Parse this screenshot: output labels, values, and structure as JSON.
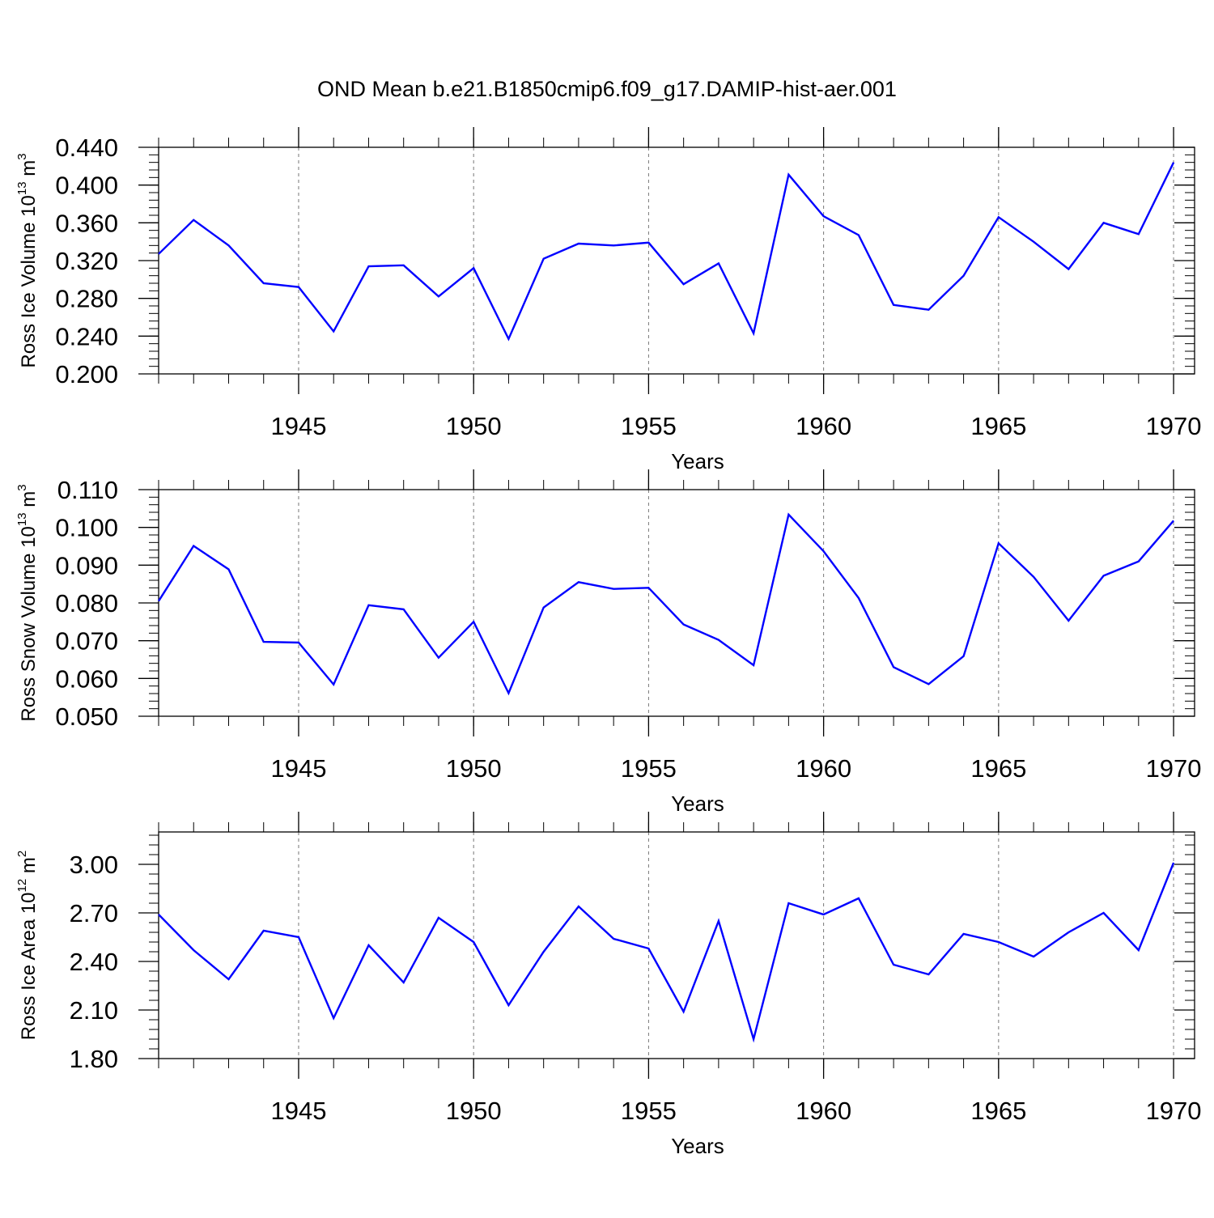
{
  "chart_data": [
    {
      "type": "line",
      "title": "OND Mean b.e21.B1850cmip6.f09_g17.DAMIP-hist-aer.001",
      "xlabel": "Years",
      "ylabel": {
        "text": "Ross Ice Volume 10",
        "exp": "13",
        "unit": " m",
        "unit_exp": "3"
      },
      "x": [
        1941,
        1942,
        1943,
        1944,
        1945,
        1946,
        1947,
        1948,
        1949,
        1950,
        1951,
        1952,
        1953,
        1954,
        1955,
        1956,
        1957,
        1958,
        1959,
        1960,
        1961,
        1962,
        1963,
        1964,
        1965,
        1966,
        1967,
        1968,
        1969,
        1970
      ],
      "values": [
        0.327,
        0.363,
        0.336,
        0.296,
        0.292,
        0.245,
        0.314,
        0.315,
        0.282,
        0.312,
        0.237,
        0.322,
        0.338,
        0.336,
        0.339,
        0.295,
        0.317,
        0.243,
        0.411,
        0.367,
        0.347,
        0.273,
        0.268,
        0.304,
        0.366,
        0.34,
        0.311,
        0.36,
        0.348,
        0.424
      ],
      "xlim": [
        1941,
        1970.6
      ],
      "ylim": [
        0.2,
        0.44
      ],
      "xticks": [
        1945,
        1950,
        1955,
        1960,
        1965,
        1970
      ],
      "yticks": [
        "0.200",
        "0.240",
        "0.280",
        "0.320",
        "0.360",
        "0.400",
        "0.440"
      ],
      "ytick_values": [
        0.2,
        0.24,
        0.28,
        0.32,
        0.36,
        0.4,
        0.44
      ],
      "grid": "dashed vertical at major x ticks",
      "line_color": "#0000ff"
    },
    {
      "type": "line",
      "title": "",
      "xlabel": "Years",
      "ylabel": {
        "text": "Ross Snow Volume 10",
        "exp": "13",
        "unit": " m",
        "unit_exp": "3"
      },
      "x": [
        1941,
        1942,
        1943,
        1944,
        1945,
        1946,
        1947,
        1948,
        1949,
        1950,
        1951,
        1952,
        1953,
        1954,
        1955,
        1956,
        1957,
        1958,
        1959,
        1960,
        1961,
        1962,
        1963,
        1964,
        1965,
        1966,
        1967,
        1968,
        1969,
        1970
      ],
      "values": [
        0.0805,
        0.0951,
        0.0889,
        0.0697,
        0.0695,
        0.0584,
        0.0794,
        0.0783,
        0.0655,
        0.075,
        0.0561,
        0.0788,
        0.0855,
        0.0837,
        0.084,
        0.0743,
        0.0702,
        0.0635,
        0.1034,
        0.0937,
        0.0813,
        0.063,
        0.0585,
        0.0659,
        0.0958,
        0.0869,
        0.0753,
        0.0872,
        0.091,
        0.1018
      ],
      "xlim": [
        1941,
        1970.6
      ],
      "ylim": [
        0.05,
        0.11
      ],
      "xticks": [
        1945,
        1950,
        1955,
        1960,
        1965,
        1970
      ],
      "yticks": [
        "0.050",
        "0.060",
        "0.070",
        "0.080",
        "0.090",
        "0.100",
        "0.110"
      ],
      "ytick_values": [
        0.05,
        0.06,
        0.07,
        0.08,
        0.09,
        0.1,
        0.11
      ],
      "grid": "dashed vertical at major x ticks",
      "line_color": "#0000ff"
    },
    {
      "type": "line",
      "title": "",
      "xlabel": "Years",
      "ylabel": {
        "text": "Ross Ice Area 10",
        "exp": "12",
        "unit": " m",
        "unit_exp": "2"
      },
      "x": [
        1941,
        1942,
        1943,
        1944,
        1945,
        1946,
        1947,
        1948,
        1949,
        1950,
        1951,
        1952,
        1953,
        1954,
        1955,
        1956,
        1957,
        1958,
        1959,
        1960,
        1961,
        1962,
        1963,
        1964,
        1965,
        1966,
        1967,
        1968,
        1969,
        1970
      ],
      "values": [
        2.69,
        2.47,
        2.29,
        2.59,
        2.55,
        2.05,
        2.5,
        2.27,
        2.67,
        2.52,
        2.13,
        2.46,
        2.74,
        2.54,
        2.48,
        2.09,
        2.65,
        1.92,
        2.76,
        2.69,
        2.79,
        2.38,
        2.32,
        2.57,
        2.52,
        2.43,
        2.58,
        2.7,
        2.47,
        3.01
      ],
      "xlim": [
        1941,
        1970.6
      ],
      "ylim": [
        1.8,
        3.2
      ],
      "xticks": [
        1945,
        1950,
        1955,
        1960,
        1965,
        1970
      ],
      "yticks": [
        "1.80",
        "2.10",
        "2.40",
        "2.70",
        "3.00"
      ],
      "ytick_values": [
        1.8,
        2.1,
        2.4,
        2.7,
        3.0
      ],
      "grid": "dashed vertical at major x ticks",
      "line_color": "#0000ff"
    }
  ]
}
